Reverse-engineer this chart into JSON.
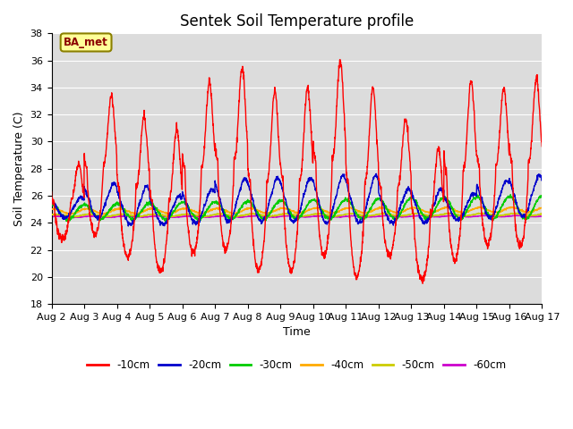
{
  "title": "Sentek Soil Temperature profile",
  "xlabel": "Time",
  "ylabel": "Soil Temperature (C)",
  "annotation": "BA_met",
  "ylim": [
    18,
    38
  ],
  "background_color": "#dcdcdc",
  "legend_labels": [
    "-10cm",
    "-20cm",
    "-30cm",
    "-40cm",
    "-50cm",
    "-60cm"
  ],
  "legend_colors": [
    "#ff0000",
    "#0000cc",
    "#00cc00",
    "#ffaa00",
    "#cccc00",
    "#cc00cc"
  ],
  "xtick_labels": [
    "Aug 2",
    "Aug 3",
    "Aug 4",
    "Aug 5",
    "Aug 6",
    "Aug 7",
    "Aug 8",
    "Aug 9",
    "Aug 10",
    "Aug 11",
    "Aug 12",
    "Aug 13",
    "Aug 14",
    "Aug 15",
    "Aug 16",
    "Aug 17"
  ],
  "num_days": 15,
  "points_per_day": 144,
  "base_temp": 24.8,
  "peak_heights_10cm": [
    28.3,
    33.3,
    31.8,
    30.9,
    34.4,
    35.4,
    33.7,
    34.0,
    36.0,
    34.0,
    31.7,
    29.5,
    34.5,
    34.0,
    34.7
  ],
  "trough_depths_10cm": [
    22.8,
    23.1,
    21.5,
    20.4,
    21.7,
    22.0,
    20.5,
    20.5,
    21.5,
    20.0,
    21.5,
    19.7,
    21.2,
    22.4,
    22.3
  ],
  "peak_heights_20cm": [
    25.9,
    26.9,
    26.7,
    26.0,
    26.5,
    27.3,
    27.3,
    27.3,
    27.5,
    27.5,
    26.5,
    26.5,
    26.2,
    27.1,
    27.5
  ],
  "trough_depths_20cm": [
    24.4,
    24.4,
    23.9,
    23.9,
    24.0,
    24.1,
    24.1,
    24.1,
    24.0,
    24.0,
    24.0,
    24.0,
    24.2,
    24.4,
    24.5
  ]
}
